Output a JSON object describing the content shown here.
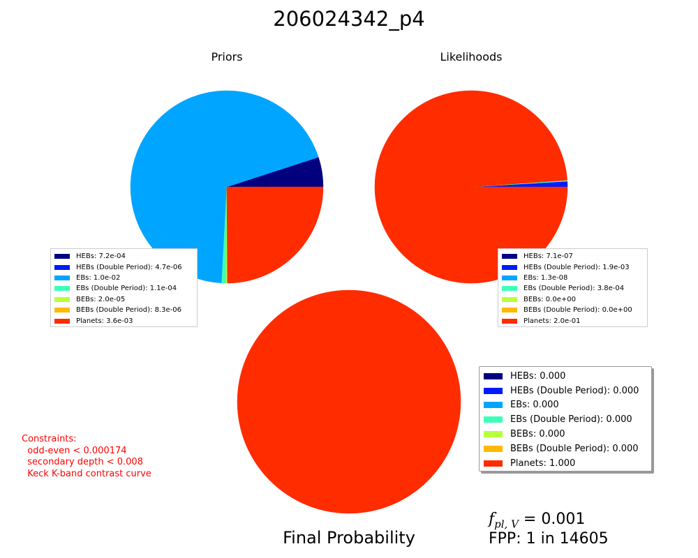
{
  "title": "206024342_p4",
  "colors": {
    "HEBs": "#00007f",
    "HEBs (Double Period)": "#0019ff",
    "EBs": "#00a5ff",
    "EBs (Double Period)": "#3dffb9",
    "BEBs": "#b9ff3d",
    "BEBs (Double Period)": "#ffb900",
    "Planets": "#ff2c00"
  },
  "chart_data": [
    {
      "type": "pie",
      "title": "Priors",
      "categories": [
        "HEBs",
        "HEBs (Double Period)",
        "EBs",
        "EBs (Double Period)",
        "BEBs",
        "BEBs (Double Period)",
        "Planets"
      ],
      "values": [
        0.00072,
        4.7e-06,
        0.01,
        0.00011,
        2e-05,
        8.3e-06,
        0.0036
      ],
      "legend_labels": [
        "HEBs: 7.2e-04",
        "HEBs (Double Period): 4.7e-06",
        "EBs: 1.0e-02",
        "EBs (Double Period): 1.1e-04",
        "BEBs: 2.0e-05",
        "BEBs (Double Period): 8.3e-06",
        "Planets: 3.6e-03"
      ],
      "legend_position": "lower-left"
    },
    {
      "type": "pie",
      "title": "Likelihoods",
      "categories": [
        "HEBs",
        "HEBs (Double Period)",
        "EBs",
        "EBs (Double Period)",
        "BEBs",
        "BEBs (Double Period)",
        "Planets"
      ],
      "values": [
        7.1e-07,
        0.0019,
        1.3e-08,
        0.00038,
        0.0,
        0.0,
        0.2
      ],
      "legend_labels": [
        "HEBs: 7.1e-07",
        "HEBs (Double Period): 1.9e-03",
        "EBs: 1.3e-08",
        "EBs (Double Period): 3.8e-04",
        "BEBs: 0.0e+00",
        "BEBs (Double Period): 0.0e+00",
        "Planets: 2.0e-01"
      ],
      "legend_position": "lower-right"
    },
    {
      "type": "pie",
      "title": "Final Probability",
      "categories": [
        "HEBs",
        "HEBs (Double Period)",
        "EBs",
        "EBs (Double Period)",
        "BEBs",
        "BEBs (Double Period)",
        "Planets"
      ],
      "values": [
        0.0,
        0.0,
        0.0,
        0.0,
        0.0,
        0.0,
        1.0
      ],
      "legend_labels": [
        "HEBs: 0.000",
        "HEBs (Double Period): 0.000",
        "EBs: 0.000",
        "EBs (Double Period): 0.000",
        "BEBs: 0.000",
        "BEBs (Double Period): 0.000",
        "Planets: 1.000"
      ],
      "legend_position": "right"
    }
  ],
  "constraints_text": "Constraints:\n  odd-even < 0.000174\n  secondary depth < 0.008\n  Keck K-band contrast curve",
  "fpl": {
    "label": "f",
    "subscript": "pl, V",
    "value": " = 0.001"
  },
  "fpp_text": "FPP: 1 in 14605"
}
